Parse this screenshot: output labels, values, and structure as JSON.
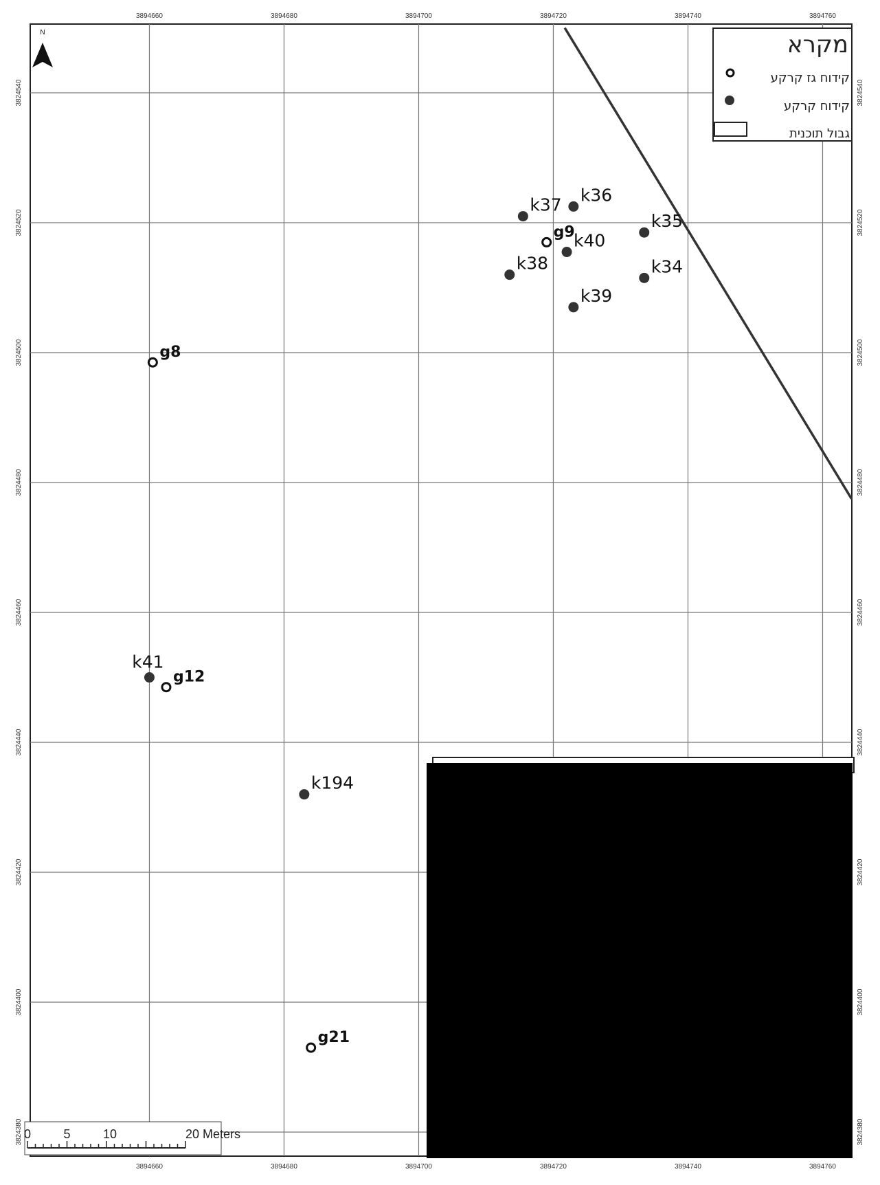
{
  "caption": "",
  "x_ticks": [
    "3894660",
    "3894680",
    "3894700",
    "3894720",
    "3894740",
    "3894760"
  ],
  "y_ticks": [
    "3824540",
    "3824520",
    "3824500",
    "3824480",
    "3824460",
    "3824440",
    "3824420",
    "3824400",
    "3824380"
  ],
  "north_label": "N",
  "legend": {
    "title": "מקרא",
    "items": [
      {
        "label": "קידוח גז קרקע",
        "symbol": "hollow-circle"
      },
      {
        "label": "קידוח קרקע",
        "symbol": "filled-circle"
      },
      {
        "label": "גבול תוכנית",
        "symbol": "rectangle"
      }
    ]
  },
  "points": [
    {
      "id": "k37",
      "type": "soil",
      "x": 3894715.5,
      "y": 3824521.0
    },
    {
      "id": "k36",
      "type": "soil",
      "x": 3894723.0,
      "y": 3824522.5
    },
    {
      "id": "k35",
      "type": "soil",
      "x": 3894733.5,
      "y": 3824518.5
    },
    {
      "id": "g9",
      "type": "gas",
      "x": 3894719.0,
      "y": 3824517.0
    },
    {
      "id": "k40",
      "type": "soil",
      "x": 3894722.0,
      "y": 3824515.5
    },
    {
      "id": "k38",
      "type": "soil",
      "x": 3894713.5,
      "y": 3824512.0
    },
    {
      "id": "k34",
      "type": "soil",
      "x": 3894733.5,
      "y": 3824511.5
    },
    {
      "id": "k39",
      "type": "soil",
      "x": 3894723.0,
      "y": 3824507.0
    },
    {
      "id": "g8",
      "type": "gas",
      "x": 3894660.5,
      "y": 3824498.5
    },
    {
      "id": "k41",
      "type": "soil",
      "x": 3894660.0,
      "y": 3824450.0
    },
    {
      "id": "g12",
      "type": "gas",
      "x": 3894662.5,
      "y": 3824448.5
    },
    {
      "id": "k194",
      "type": "soil",
      "x": 3894683.0,
      "y": 3824432.0
    },
    {
      "id": "g21",
      "type": "gas",
      "x": 3894684.0,
      "y": 3824393.0
    }
  ],
  "boundary_line": {
    "x1": 3894721.7,
    "y1": 3824550.0,
    "x2": 3894764.3,
    "y2": 3824477.5
  },
  "scale_bar": {
    "labels": [
      "0",
      "5",
      "10",
      "20 Meters"
    ],
    "values": [
      0,
      5,
      10,
      20
    ]
  },
  "x_range": [
    3894642.3,
    3894764.3
  ],
  "y_range": [
    3824376.3,
    3824550.6
  ],
  "colors": {
    "soil_point": "#333333",
    "boundary": "#333333",
    "grid": "#777777",
    "redaction": "#000000"
  }
}
